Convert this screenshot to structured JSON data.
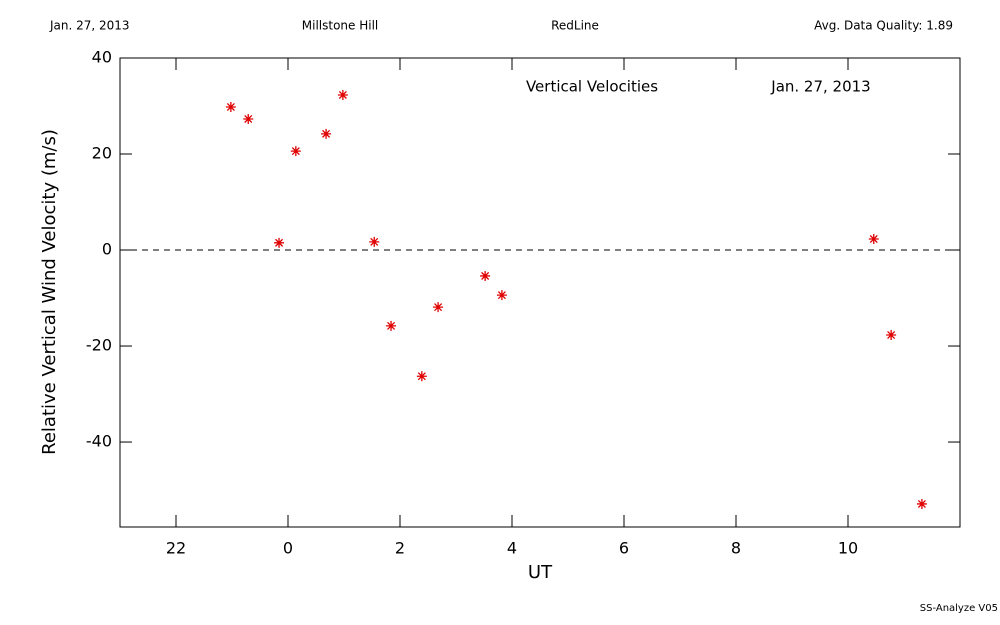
{
  "header": {
    "date": "Jan. 27, 2013",
    "site": "Millstone Hill",
    "filter": "RedLine",
    "quality": "Avg. Data Quality: 1.89"
  },
  "footer": "SS-Analyze V05",
  "chart_data": {
    "type": "scatter",
    "title": "Vertical Velocities",
    "subtitle": "Jan. 27, 2013",
    "x_label": "UT",
    "y_label": "Relative Vertical Wind Velocity (m/s)",
    "xlim": [
      -3,
      12
    ],
    "ylim": [
      -57.7,
      40
    ],
    "xticks": [
      {
        "value": -2,
        "label": "22"
      },
      0,
      2,
      4,
      6,
      8,
      10
    ],
    "yticks": [
      -40,
      -20,
      0,
      20,
      40
    ],
    "hline": 0,
    "series": [
      {
        "color": "#e00000",
        "x": [
          -1.02,
          -0.71,
          -0.16,
          0.14,
          0.68,
          0.98,
          1.54,
          1.84,
          2.39,
          2.68,
          3.52,
          3.82,
          10.46,
          10.77,
          11.32
        ],
        "values": [
          29.8,
          27.3,
          1.5,
          20.6,
          24.2,
          32.3,
          1.7,
          -15.8,
          -26.3,
          -11.9,
          -5.4,
          -9.4,
          2.3,
          -17.7,
          -52.9
        ]
      }
    ]
  }
}
